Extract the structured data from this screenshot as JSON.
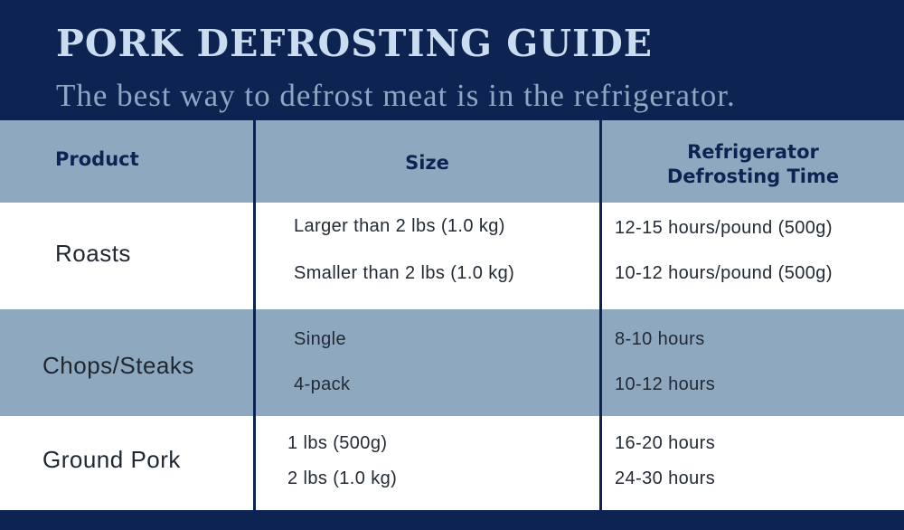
{
  "header": {
    "title": "PORK DEFROSTING GUIDE",
    "subtitle": "The best way to defrost meat is in the refrigerator."
  },
  "colors": {
    "navy": "#0d2452",
    "band_blue": "#8ea9bf",
    "title_text": "#c9dcf0",
    "subtitle_text": "#8fa6c2",
    "white": "#ffffff"
  },
  "table": {
    "columns": {
      "product": "Product",
      "size": "Size",
      "time_line1": "Refrigerator",
      "time_line2": "Defrosting Time"
    },
    "rows": [
      {
        "product": "Roasts",
        "sizes": [
          "Larger than 2 lbs (1.0 kg)",
          "Smaller than 2 lbs (1.0 kg)"
        ],
        "times": [
          "12-15 hours/pound (500g)",
          "10-12 hours/pound (500g)"
        ]
      },
      {
        "product": "Chops/Steaks",
        "sizes": [
          "Single",
          "4-pack"
        ],
        "times": [
          "8-10 hours",
          "10-12 hours"
        ]
      },
      {
        "product": "Ground Pork",
        "sizes": [
          "1 lbs (500g)",
          "2 lbs (1.0 kg)"
        ],
        "times": [
          "16-20 hours",
          "24-30 hours"
        ]
      }
    ]
  }
}
